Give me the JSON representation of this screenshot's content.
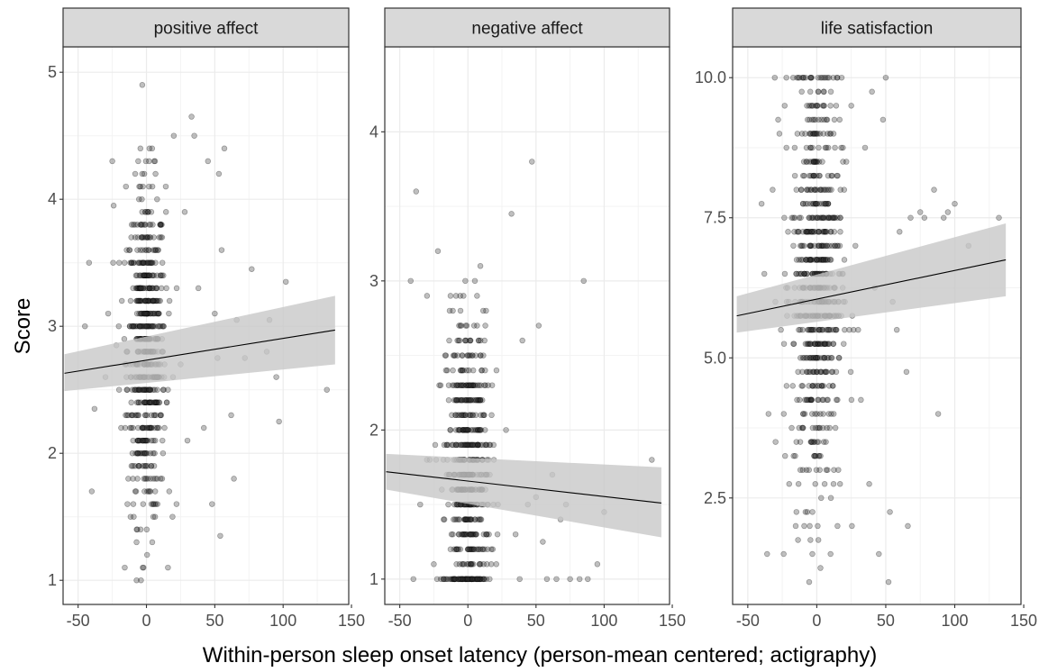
{
  "chart_data": {
    "type": "scatter",
    "ylabel": "Score",
    "xlabel": "Within-person sleep onset latency (person-mean centered; actigraphy)",
    "x_ticks": [
      "-50",
      "0",
      "50",
      "100",
      "150"
    ],
    "xlim": [
      -61,
      148
    ],
    "grid": true,
    "colors": {
      "point_fill": "#2b2b2b",
      "line": "#000000",
      "ribbon": "#c8c8c8",
      "strip": "#d9d9d9",
      "grid_major": "#ebebeb"
    },
    "panels": [
      {
        "strip": "positive affect",
        "y_ticks": [
          "1",
          "2",
          "3",
          "4",
          "5"
        ],
        "y_tick_values": [
          1,
          2,
          3,
          4,
          5
        ],
        "ylim": [
          0.81,
          5.2
        ],
        "trend": {
          "x": [
            -60,
            138
          ],
          "y": [
            2.63,
            2.97
          ]
        },
        "ci": {
          "x": [
            -60,
            138
          ],
          "lower": [
            2.49,
            2.7
          ],
          "upper": [
            2.78,
            3.24
          ]
        },
        "points_summary": {
          "n_approx": 650,
          "center_x": 0,
          "x_spread": 7,
          "y_mean": 2.8,
          "y_sd": 0.65,
          "y_step": 0.1,
          "y_min": 1,
          "y_max": 5
        },
        "outliers": [
          [
            -45,
            3.0
          ],
          [
            -42,
            3.5
          ],
          [
            -40,
            1.7
          ],
          [
            -38,
            2.35
          ],
          [
            -30,
            2.6
          ],
          [
            -28,
            3.1
          ],
          [
            -25,
            4.3
          ],
          [
            -24,
            3.95
          ],
          [
            -22,
            2.85
          ],
          [
            -20,
            2.5
          ],
          [
            -18,
            3.2
          ],
          [
            -15,
            4.1
          ],
          [
            20,
            4.5
          ],
          [
            22,
            1.6
          ],
          [
            25,
            2.7
          ],
          [
            28,
            3.9
          ],
          [
            30,
            2.1
          ],
          [
            33,
            4.65
          ],
          [
            35,
            4.5
          ],
          [
            38,
            3.3
          ],
          [
            42,
            2.2
          ],
          [
            45,
            4.3
          ],
          [
            48,
            1.6
          ],
          [
            50,
            3.1
          ],
          [
            52,
            2.75
          ],
          [
            53,
            4.2
          ],
          [
            54,
            1.35
          ],
          [
            55,
            3.6
          ],
          [
            57,
            4.4
          ],
          [
            62,
            2.3
          ],
          [
            64,
            1.8
          ],
          [
            66,
            3.05
          ],
          [
            72,
            2.75
          ],
          [
            77,
            3.45
          ],
          [
            88,
            2.8
          ],
          [
            90,
            3.05
          ],
          [
            95,
            2.6
          ],
          [
            97,
            2.25
          ],
          [
            102,
            3.35
          ],
          [
            132,
            2.5
          ]
        ]
      },
      {
        "strip": "negative affect",
        "y_ticks": [
          "1",
          "2",
          "3",
          "4"
        ],
        "y_tick_values": [
          1,
          2,
          3,
          4
        ],
        "ylim": [
          0.83,
          4.57
        ],
        "trend": {
          "x": [
            -60,
            142
          ],
          "y": [
            1.72,
            1.51
          ]
        },
        "ci": {
          "x": [
            -60,
            142
          ],
          "lower": [
            1.6,
            1.28
          ],
          "upper": [
            1.84,
            1.75
          ]
        },
        "points_summary": {
          "n_approx": 600,
          "center_x": 0,
          "x_spread": 8,
          "y_mean": 1.7,
          "y_sd": 0.55,
          "y_step": 0.1,
          "y_min": 1,
          "y_max": 4.4
        },
        "outliers": [
          [
            -42,
            3.0
          ],
          [
            -40,
            1.0
          ],
          [
            -38,
            3.6
          ],
          [
            -35,
            1.5
          ],
          [
            -30,
            2.9
          ],
          [
            -28,
            1.8
          ],
          [
            -25,
            1.1
          ],
          [
            -22,
            3.2
          ],
          [
            -20,
            2.3
          ],
          [
            -18,
            1.0
          ],
          [
            28,
            2.0
          ],
          [
            32,
            3.45
          ],
          [
            35,
            1.3
          ],
          [
            38,
            1.0
          ],
          [
            40,
            2.6
          ],
          [
            44,
            1.5
          ],
          [
            47,
            3.8
          ],
          [
            50,
            1.55
          ],
          [
            52,
            2.7
          ],
          [
            55,
            1.25
          ],
          [
            58,
            1.0
          ],
          [
            62,
            1.7
          ],
          [
            65,
            1.0
          ],
          [
            68,
            1.4
          ],
          [
            72,
            1.5
          ],
          [
            75,
            1.0
          ],
          [
            82,
            1.0
          ],
          [
            85,
            3.0
          ],
          [
            88,
            1.0
          ],
          [
            95,
            1.1
          ],
          [
            100,
            1.45
          ],
          [
            135,
            1.8
          ]
        ]
      },
      {
        "strip": "life satisfaction",
        "y_ticks": [
          "2.5",
          "5.0",
          "7.5",
          "10.0"
        ],
        "y_tick_values": [
          2.5,
          5.0,
          7.5,
          10.0
        ],
        "ylim": [
          0.6,
          10.55
        ],
        "trend": {
          "x": [
            -58,
            137
          ],
          "y": [
            5.75,
            6.75
          ]
        },
        "ci": {
          "x": [
            -58,
            137
          ],
          "lower": [
            5.45,
            6.1
          ],
          "upper": [
            6.1,
            7.4
          ]
        },
        "points_summary": {
          "n_approx": 700,
          "center_x": 0,
          "x_spread": 9,
          "y_mean": 6.4,
          "y_sd": 2.0,
          "y_step": 0.25,
          "y_min": 1,
          "y_max": 10
        },
        "outliers": [
          [
            -40,
            7.75
          ],
          [
            -38,
            6.5
          ],
          [
            -36,
            1.5
          ],
          [
            -35,
            4.0
          ],
          [
            -32,
            8.0
          ],
          [
            -30,
            6.0
          ],
          [
            -28,
            9.25
          ],
          [
            -26,
            5.5
          ],
          [
            -24,
            1.5
          ],
          [
            -22,
            8.75
          ],
          [
            -20,
            2.75
          ],
          [
            25,
            9.5
          ],
          [
            28,
            7.0
          ],
          [
            30,
            5.5
          ],
          [
            32,
            4.25
          ],
          [
            35,
            8.75
          ],
          [
            38,
            2.75
          ],
          [
            40,
            9.75
          ],
          [
            42,
            6.25
          ],
          [
            45,
            1.5
          ],
          [
            48,
            9.25
          ],
          [
            50,
            10.0
          ],
          [
            52,
            1.0
          ],
          [
            53,
            2.25
          ],
          [
            55,
            6.0
          ],
          [
            58,
            5.5
          ],
          [
            60,
            7.25
          ],
          [
            65,
            4.75
          ],
          [
            66,
            2.0
          ],
          [
            68,
            7.5
          ],
          [
            75,
            7.6
          ],
          [
            78,
            7.5
          ],
          [
            85,
            8.0
          ],
          [
            88,
            4.0
          ],
          [
            92,
            7.5
          ],
          [
            95,
            7.6
          ],
          [
            100,
            7.75
          ],
          [
            110,
            7.0
          ],
          [
            132,
            7.5
          ]
        ]
      }
    ]
  }
}
